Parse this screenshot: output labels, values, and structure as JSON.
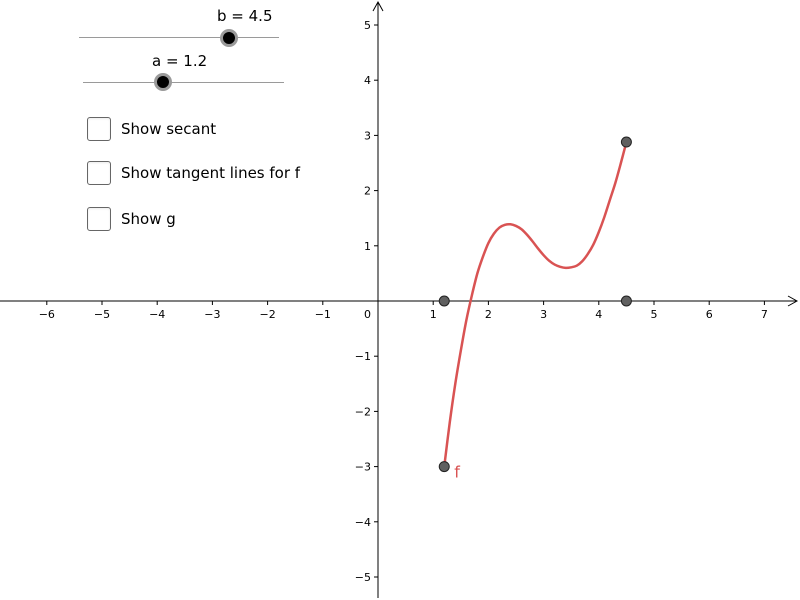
{
  "sliders": [
    {
      "id": "b",
      "label": "b = 4.5",
      "value": 4.5
    },
    {
      "id": "a",
      "label": "a = 1.2",
      "value": 1.2
    }
  ],
  "checkboxes": [
    {
      "label": "Show secant",
      "checked": false
    },
    {
      "label": "Show tangent lines for f",
      "checked": false
    },
    {
      "label": "Show g",
      "checked": false
    }
  ],
  "colors": {
    "curve": "#d95353",
    "point_fill": "#606060",
    "axis": "#000000"
  },
  "chart_data": {
    "type": "line",
    "xlim": [
      -7,
      7.5
    ],
    "ylim": [
      -5.3,
      5.3
    ],
    "x_ticks": [
      -6,
      -5,
      -4,
      -3,
      -2,
      -1,
      1,
      2,
      3,
      4,
      5,
      6,
      7
    ],
    "y_ticks": [
      -5,
      -4,
      -3,
      -2,
      -1,
      1,
      2,
      3,
      4,
      5
    ],
    "origin_label": "0",
    "tick_labels_x": [
      "−6",
      "−5",
      "−4",
      "−3",
      "−2",
      "−1",
      "1",
      "2",
      "3",
      "4",
      "5",
      "6",
      "7"
    ],
    "tick_labels_y": [
      "−5",
      "−4",
      "−3",
      "−2",
      "−1",
      "1",
      "2",
      "3",
      "4",
      "5"
    ],
    "series": [
      {
        "name": "f",
        "x": [
          1.2,
          1.3,
          1.4,
          1.5,
          1.6,
          1.7,
          1.8,
          1.9,
          2.0,
          2.1,
          2.2,
          2.3,
          2.4,
          2.5,
          2.6,
          2.7,
          2.8,
          2.9,
          3.0,
          3.1,
          3.2,
          3.3,
          3.4,
          3.5,
          3.6,
          3.7,
          3.8,
          3.9,
          4.0,
          4.1,
          4.2,
          4.3,
          4.4,
          4.5
        ],
        "y": [
          -3.0,
          -2.2,
          -1.5,
          -0.9,
          -0.35,
          0.1,
          0.5,
          0.8,
          1.05,
          1.22,
          1.33,
          1.38,
          1.39,
          1.36,
          1.3,
          1.2,
          1.08,
          0.95,
          0.83,
          0.73,
          0.66,
          0.62,
          0.6,
          0.61,
          0.64,
          0.72,
          0.85,
          1.02,
          1.25,
          1.52,
          1.83,
          2.14,
          2.5,
          2.88
        ]
      }
    ],
    "points": [
      {
        "x": 1.2,
        "y": 0
      },
      {
        "x": 4.5,
        "y": 0
      },
      {
        "x": 1.2,
        "y": -3.0
      },
      {
        "x": 4.5,
        "y": 2.88
      }
    ],
    "function_label": {
      "text": "f",
      "x": 1.2,
      "y": -3.0
    }
  }
}
